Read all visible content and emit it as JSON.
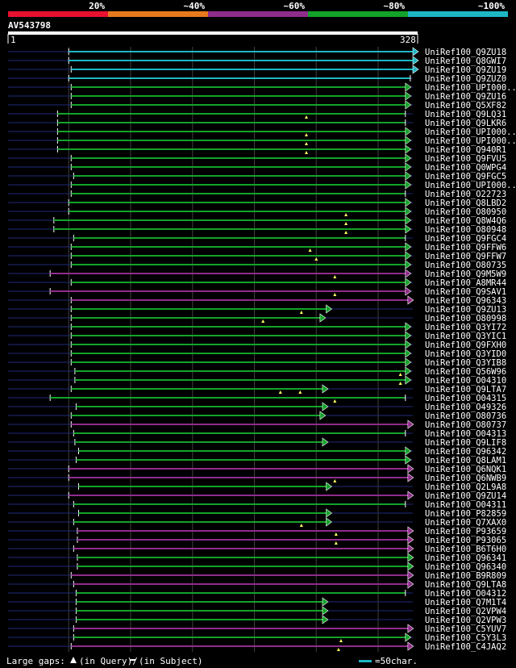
{
  "colors": {
    "background": "#000000",
    "scale_20": "#e8102f",
    "scale_40": "#e87a1e",
    "scale_60": "#902c8c",
    "scale_80": "#13a32a",
    "scale_100": "#1eb6c4",
    "query_bar": "#ffffff",
    "faint_line": "#1f2a7a",
    "grid": "#404040"
  },
  "scale": {
    "labels": [
      "20%",
      "~40%",
      "~60%",
      "~80%",
      "~100%"
    ],
    "colors": [
      "#e8102f",
      "#e87a1e",
      "#902c8c",
      "#13a32a",
      "#1eb6c4"
    ]
  },
  "query": {
    "name": "AV543798",
    "start": "1",
    "end": "328",
    "length": 328
  },
  "hits": [
    {
      "name": "UniRef100_Q9ZU18",
      "c": 4,
      "s": 50,
      "e": 328,
      "arrow": true
    },
    {
      "name": "UniRef100_Q8GWI7",
      "c": 4,
      "s": 50,
      "e": 328,
      "arrow": true
    },
    {
      "name": "UniRef100_Q9ZU19",
      "c": 4,
      "s": 52,
      "e": 328,
      "arrow": true
    },
    {
      "name": "UniRef100_Q9ZUZ0",
      "c": 4,
      "s": 50,
      "e": 326,
      "arrow": false
    },
    {
      "name": "UniRef100_UPI000..",
      "c": 3,
      "s": 52,
      "e": 322,
      "arrow": true
    },
    {
      "name": "UniRef100_Q9ZU16",
      "c": 3,
      "s": 52,
      "e": 322,
      "arrow": true
    },
    {
      "name": "UniRef100_Q5XF82",
      "c": 3,
      "s": 52,
      "e": 322,
      "arrow": true
    },
    {
      "name": "UniRef100_Q9LQ31",
      "c": 3,
      "s": 41,
      "e": 322,
      "arrow": false,
      "gaps": [
        242
      ]
    },
    {
      "name": "UniRef100_Q9LKR6",
      "c": 3,
      "s": 41,
      "e": 322,
      "arrow": false
    },
    {
      "name": "UniRef100_UPI000..",
      "c": 3,
      "s": 41,
      "e": 322,
      "arrow": true,
      "gaps": [
        242
      ]
    },
    {
      "name": "UniRef100_UPI000..",
      "c": 3,
      "s": 41,
      "e": 322,
      "arrow": true,
      "gaps": [
        242
      ]
    },
    {
      "name": "UniRef100_Q940R1",
      "c": 3,
      "s": 41,
      "e": 322,
      "arrow": true,
      "gaps": [
        242
      ]
    },
    {
      "name": "UniRef100_Q9FVU5",
      "c": 3,
      "s": 52,
      "e": 322,
      "arrow": true
    },
    {
      "name": "UniRef100_Q0WPG4",
      "c": 3,
      "s": 52,
      "e": 322,
      "arrow": true
    },
    {
      "name": "UniRef100_Q9FGC5",
      "c": 3,
      "s": 54,
      "e": 322,
      "arrow": true
    },
    {
      "name": "UniRef100_UPI000..",
      "c": 3,
      "s": 52,
      "e": 322,
      "arrow": true
    },
    {
      "name": "UniRef100_O22723",
      "c": 3,
      "s": 52,
      "e": 322,
      "arrow": false
    },
    {
      "name": "UniRef100_Q8LBD2",
      "c": 3,
      "s": 50,
      "e": 322,
      "arrow": true
    },
    {
      "name": "UniRef100_O80950",
      "c": 3,
      "s": 50,
      "e": 322,
      "arrow": true,
      "gaps": [
        274
      ]
    },
    {
      "name": "UniRef100_Q8W4Q6",
      "c": 3,
      "s": 38,
      "e": 322,
      "arrow": true,
      "gaps": [
        274
      ]
    },
    {
      "name": "UniRef100_O80948",
      "c": 3,
      "s": 38,
      "e": 322,
      "arrow": true,
      "gaps": [
        274
      ]
    },
    {
      "name": "UniRef100_Q9FGC4",
      "c": 3,
      "s": 54,
      "e": 322,
      "arrow": false
    },
    {
      "name": "UniRef100_Q9FFW6",
      "c": 3,
      "s": 52,
      "e": 322,
      "arrow": true,
      "gaps": [
        245
      ]
    },
    {
      "name": "UniRef100_Q9FFW7",
      "c": 3,
      "s": 52,
      "e": 322,
      "arrow": true,
      "gaps": [
        250
      ]
    },
    {
      "name": "UniRef100_O80735",
      "c": 3,
      "s": 52,
      "e": 322,
      "arrow": true
    },
    {
      "name": "UniRef100_Q9M5W9",
      "c": 2,
      "s": 35,
      "e": 322,
      "arrow": true,
      "gaps": [
        265
      ]
    },
    {
      "name": "UniRef100_A8MR44",
      "c": 3,
      "s": 52,
      "e": 322,
      "arrow": true
    },
    {
      "name": "UniRef100_Q9SAV1",
      "c": 2,
      "s": 35,
      "e": 322,
      "arrow": true,
      "gaps": [
        265
      ]
    },
    {
      "name": "UniRef100_Q96343",
      "c": 2,
      "s": 52,
      "e": 324,
      "arrow": true
    },
    {
      "name": "UniRef100_Q9ZU13",
      "c": 3,
      "s": 52,
      "e": 258,
      "arrow": true,
      "gaps": [
        238
      ]
    },
    {
      "name": "UniRef100_O80998",
      "c": 3,
      "s": 52,
      "e": 253,
      "arrow": true,
      "gaps": [
        207
      ]
    },
    {
      "name": "UniRef100_Q3YI72",
      "c": 3,
      "s": 52,
      "e": 322,
      "arrow": true
    },
    {
      "name": "UniRef100_Q3YIC1",
      "c": 3,
      "s": 52,
      "e": 322,
      "arrow": true
    },
    {
      "name": "UniRef100_Q9FXH0",
      "c": 3,
      "s": 52,
      "e": 322,
      "arrow": true
    },
    {
      "name": "UniRef100_Q3YID0",
      "c": 3,
      "s": 52,
      "e": 322,
      "arrow": true
    },
    {
      "name": "UniRef100_Q3YIB8",
      "c": 3,
      "s": 52,
      "e": 322,
      "arrow": true
    },
    {
      "name": "UniRef100_Q56W96",
      "c": 3,
      "s": 55,
      "e": 322,
      "arrow": true,
      "gaps": [
        318
      ]
    },
    {
      "name": "UniRef100_O04310",
      "c": 3,
      "s": 55,
      "e": 322,
      "arrow": true,
      "gaps": [
        318
      ]
    },
    {
      "name": "UniRef100_Q9LTA7",
      "c": 3,
      "s": 52,
      "e": 255,
      "arrow": true,
      "gaps": [
        221,
        237
      ]
    },
    {
      "name": "UniRef100_O04315",
      "c": 3,
      "s": 35,
      "e": 322,
      "arrow": false,
      "gaps": [
        265
      ]
    },
    {
      "name": "UniRef100_O49326",
      "c": 3,
      "s": 56,
      "e": 255,
      "arrow": true
    },
    {
      "name": "UniRef100_O80736",
      "c": 3,
      "s": 52,
      "e": 253,
      "arrow": true
    },
    {
      "name": "UniRef100_O80737",
      "c": 2,
      "s": 52,
      "e": 324,
      "arrow": true
    },
    {
      "name": "UniRef100_O04313",
      "c": 3,
      "s": 54,
      "e": 322,
      "arrow": false
    },
    {
      "name": "UniRef100_Q9LIF8",
      "c": 3,
      "s": 55,
      "e": 255,
      "arrow": true
    },
    {
      "name": "UniRef100_Q96342",
      "c": 3,
      "s": 58,
      "e": 322,
      "arrow": true
    },
    {
      "name": "UniRef100_Q8LAM1",
      "c": 3,
      "s": 56,
      "e": 322,
      "arrow": true
    },
    {
      "name": "UniRef100_Q6NQK1",
      "c": 2,
      "s": 50,
      "e": 324,
      "arrow": true
    },
    {
      "name": "UniRef100_Q6NWB9",
      "c": 2,
      "s": 50,
      "e": 324,
      "arrow": true,
      "gaps": [
        265
      ]
    },
    {
      "name": "UniRef100_Q2L9A8",
      "c": 3,
      "s": 58,
      "e": 258,
      "arrow": true
    },
    {
      "name": "UniRef100_Q9ZU14",
      "c": 2,
      "s": 50,
      "e": 324,
      "arrow": true
    },
    {
      "name": "UniRef100_O04311",
      "c": 3,
      "s": 54,
      "e": 322,
      "arrow": false
    },
    {
      "name": "UniRef100_P82859",
      "c": 3,
      "s": 58,
      "e": 258,
      "arrow": true
    },
    {
      "name": "UniRef100_Q7XAX0",
      "c": 3,
      "s": 54,
      "e": 258,
      "arrow": true,
      "gaps": [
        238
      ]
    },
    {
      "name": "UniRef100_P93659",
      "c": 2,
      "s": 57,
      "e": 324,
      "arrow": true,
      "gaps": [
        266
      ]
    },
    {
      "name": "UniRef100_P93065",
      "c": 2,
      "s": 57,
      "e": 324,
      "arrow": true,
      "gaps": [
        266
      ]
    },
    {
      "name": "UniRef100_B6T6H0",
      "c": 2,
      "s": 54,
      "e": 324,
      "arrow": true
    },
    {
      "name": "UniRef100_Q96341",
      "c": 3,
      "s": 57,
      "e": 324,
      "arrow": true
    },
    {
      "name": "UniRef100_Q96340",
      "c": 3,
      "s": 57,
      "e": 324,
      "arrow": true
    },
    {
      "name": "UniRef100_B9R809",
      "c": 2,
      "s": 52,
      "e": 324,
      "arrow": true
    },
    {
      "name": "UniRef100_Q9LTA8",
      "c": 2,
      "s": 54,
      "e": 324,
      "arrow": true
    },
    {
      "name": "UniRef100_O04312",
      "c": 3,
      "s": 56,
      "e": 322,
      "arrow": false
    },
    {
      "name": "UniRef100_Q7M1T4",
      "c": 3,
      "s": 56,
      "e": 255,
      "arrow": true
    },
    {
      "name": "UniRef100_Q2VPW4",
      "c": 3,
      "s": 56,
      "e": 255,
      "arrow": true
    },
    {
      "name": "UniRef100_Q2VPW3",
      "c": 3,
      "s": 56,
      "e": 255,
      "arrow": true
    },
    {
      "name": "UniRef100_C5YUV7",
      "c": 2,
      "s": 54,
      "e": 324,
      "arrow": true
    },
    {
      "name": "UniRef100_C5Y3L3",
      "c": 3,
      "s": 54,
      "e": 322,
      "arrow": true,
      "gaps": [
        270
      ]
    },
    {
      "name": "UniRef100_C4JAQ2",
      "c": 2,
      "s": 52,
      "e": 324,
      "arrow": true,
      "gaps": [
        268
      ]
    }
  ],
  "legend": {
    "gaps_label": "Large gaps:",
    "query_label": "(in Query)/",
    "subject_label": "(in Subject)",
    "scale_label": "=50char."
  }
}
